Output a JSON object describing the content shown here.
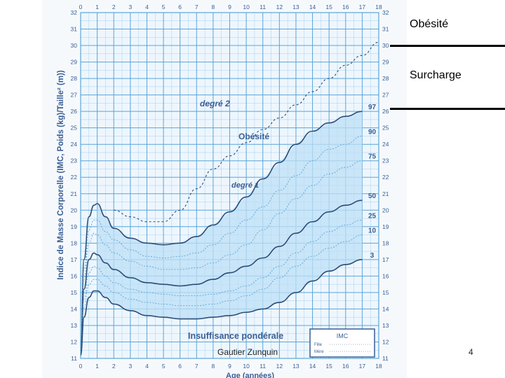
{
  "slide": {
    "label_obesite": "Obésité",
    "label_surcharge": "Surcharge",
    "author": "Gautier Zunquin",
    "page_number": "4"
  },
  "colors": {
    "grid": "#5ba6d8",
    "background": "#eef6fd",
    "band": "#bcdff5",
    "curve": "#2c4e7a",
    "text": "#3a5f95"
  },
  "chart_data": {
    "type": "line",
    "ylabel": "Indice de Masse Corporelle (IMC, Poids (kg)/Taille² (m))",
    "xlabel": "Age (années)",
    "xlim": [
      0,
      18
    ],
    "ylim": [
      11,
      32
    ],
    "x_ticks": [
      0,
      1,
      2,
      3,
      4,
      5,
      6,
      7,
      8,
      9,
      10,
      11,
      12,
      13,
      14,
      15,
      16,
      17,
      18
    ],
    "y_ticks": [
      11,
      12,
      13,
      14,
      15,
      16,
      17,
      18,
      19,
      20,
      21,
      22,
      23,
      24,
      25,
      26,
      27,
      28,
      29,
      30,
      31,
      32
    ],
    "grid": true,
    "annotations": {
      "obesite": "Obésité",
      "degre2": "degré 2",
      "degre1": "degré 1",
      "insuffisance": "Insuffisance pondérale",
      "legend_title": "IMC",
      "legend_girl": "Fille",
      "legend_mother": "Mère"
    },
    "series": [
      {
        "name": "97",
        "style": "solid-dark",
        "x": [
          0,
          0.2,
          0.5,
          0.8,
          1,
          1.5,
          2,
          3,
          4,
          5,
          6,
          7,
          8,
          9,
          10,
          11,
          12,
          13,
          14,
          15,
          16,
          17
        ],
        "y": [
          11.2,
          17.0,
          19.6,
          20.3,
          20.4,
          19.6,
          18.9,
          18.3,
          18.0,
          17.9,
          18.0,
          18.4,
          19.1,
          19.9,
          20.8,
          21.9,
          22.9,
          24.0,
          24.8,
          25.3,
          25.7,
          26.0
        ]
      },
      {
        "name": "90",
        "style": "dotted",
        "x": [
          0,
          0.2,
          0.5,
          0.8,
          1,
          1.5,
          2,
          3,
          4,
          5,
          6,
          7,
          8,
          9,
          10,
          11,
          12,
          13,
          14,
          15,
          16,
          17
        ],
        "y": [
          11.2,
          16.4,
          18.8,
          19.4,
          19.4,
          18.7,
          18.2,
          17.6,
          17.2,
          17.1,
          17.2,
          17.4,
          17.9,
          18.6,
          19.4,
          20.2,
          21.2,
          22.1,
          23.0,
          23.7,
          24.0,
          24.5
        ]
      },
      {
        "name": "75",
        "style": "dotted",
        "x": [
          0,
          0.2,
          0.5,
          0.8,
          1,
          1.5,
          2,
          3,
          4,
          5,
          6,
          7,
          8,
          9,
          10,
          11,
          12,
          13,
          14,
          15,
          16,
          17
        ],
        "y": [
          11.2,
          15.8,
          18.0,
          18.6,
          18.5,
          17.9,
          17.4,
          16.9,
          16.6,
          16.4,
          16.4,
          16.5,
          16.8,
          17.3,
          17.9,
          18.8,
          19.8,
          20.7,
          21.5,
          22.2,
          22.6,
          23.0
        ]
      },
      {
        "name": "50",
        "style": "solid-dark",
        "x": [
          0,
          0.2,
          0.5,
          0.8,
          1,
          1.5,
          2,
          3,
          4,
          5,
          6,
          7,
          8,
          9,
          10,
          11,
          12,
          13,
          14,
          15,
          16,
          17
        ],
        "y": [
          11.2,
          15.2,
          17.0,
          17.4,
          17.3,
          16.8,
          16.4,
          15.9,
          15.6,
          15.5,
          15.4,
          15.5,
          15.8,
          16.2,
          16.6,
          17.1,
          17.8,
          18.6,
          19.3,
          19.9,
          20.3,
          20.6
        ]
      },
      {
        "name": "25",
        "style": "dotted",
        "x": [
          0,
          0.2,
          0.5,
          0.8,
          1,
          1.5,
          2,
          3,
          4,
          5,
          6,
          7,
          8,
          9,
          10,
          11,
          12,
          13,
          14,
          15,
          16,
          17
        ],
        "y": [
          11.2,
          14.6,
          16.2,
          16.6,
          16.5,
          16.0,
          15.6,
          15.2,
          15.0,
          14.9,
          14.8,
          14.8,
          14.9,
          15.1,
          15.4,
          15.9,
          16.6,
          17.4,
          18.1,
          18.7,
          19.1,
          19.4
        ]
      },
      {
        "name": "10",
        "style": "dotted",
        "x": [
          0,
          0.2,
          0.5,
          0.8,
          1,
          1.5,
          2,
          3,
          4,
          5,
          6,
          7,
          8,
          9,
          10,
          11,
          12,
          13,
          14,
          15,
          16,
          17
        ],
        "y": [
          11.2,
          14.1,
          15.5,
          15.8,
          15.8,
          15.4,
          15.0,
          14.6,
          14.4,
          14.3,
          14.2,
          14.2,
          14.3,
          14.5,
          14.8,
          15.2,
          15.9,
          16.6,
          17.2,
          17.7,
          18.1,
          18.5
        ]
      },
      {
        "name": "3",
        "style": "solid-dark",
        "x": [
          0,
          0.2,
          0.5,
          0.8,
          1,
          1.5,
          2,
          3,
          4,
          5,
          6,
          7,
          8,
          9,
          10,
          11,
          12,
          13,
          14,
          15,
          16,
          17
        ],
        "y": [
          11.2,
          13.5,
          14.7,
          15.1,
          15.1,
          14.7,
          14.3,
          13.9,
          13.6,
          13.5,
          13.4,
          13.4,
          13.5,
          13.6,
          13.8,
          14.0,
          14.4,
          15.0,
          15.7,
          16.3,
          16.7,
          17.0
        ]
      },
      {
        "name": "degré 2",
        "style": "dashed",
        "x": [
          2,
          3,
          4,
          5,
          6,
          7,
          8,
          9,
          10,
          11,
          12,
          13,
          14,
          15,
          16,
          17,
          18
        ],
        "y": [
          20.0,
          19.6,
          19.3,
          19.3,
          20.0,
          21.3,
          22.5,
          23.3,
          24.1,
          24.9,
          25.6,
          26.4,
          27.2,
          28.0,
          28.8,
          29.4,
          30.2
        ]
      }
    ]
  }
}
